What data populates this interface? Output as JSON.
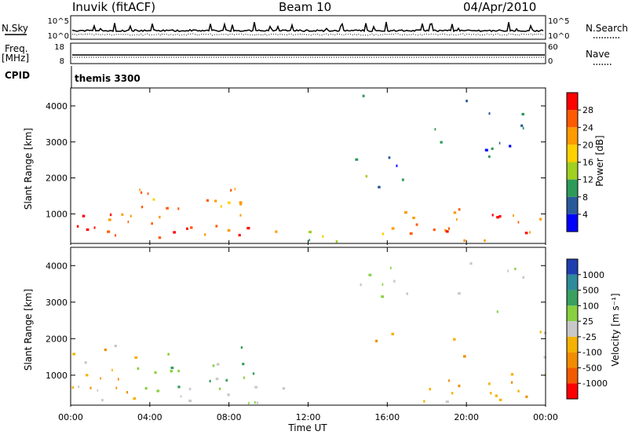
{
  "header": {
    "station": "Inuvik (fitACF)",
    "beam": "Beam 10",
    "date": "04/Apr/2010"
  },
  "params": {
    "nsky_label": "N.Sky",
    "nsearch_label": "N.Search",
    "freq_label_1": "Freq.",
    "freq_label_2": "[MHz]",
    "nave_label": "Nave",
    "cpid_label": "CPID",
    "cpid_value": "themis 3300",
    "nsky_ticks": [
      "10^5",
      "10^0"
    ],
    "nsearch_ticks": [
      "10^5",
      "10^0"
    ],
    "freq_ticks": [
      "18",
      "8"
    ],
    "nave_ticks": [
      "60",
      "0"
    ],
    "freq_mhz": 10.3
  },
  "time_axis": {
    "label": "Time UT",
    "ticks": [
      "00:00",
      "04:00",
      "08:00",
      "12:00",
      "16:00",
      "20:00",
      "00:00"
    ]
  },
  "power_scale": {
    "title": "Power [dB]",
    "ticks": [
      "28",
      "24",
      "20",
      "16",
      "12",
      "8",
      "4"
    ],
    "colors": [
      "#ff0000",
      "#ff5a00",
      "#ff9a00",
      "#ffd000",
      "#a0d020",
      "#2e9a5a",
      "#2a5a9a",
      "#0000ff"
    ]
  },
  "velocity_scale": {
    "title": "Velocity [m s⁻¹]",
    "ticks": [
      "1000",
      "500",
      "100",
      "25",
      "-25",
      "-100",
      "-500",
      "-1000"
    ],
    "colors": [
      "#1f3fb0",
      "#2f8a9a",
      "#3aa060",
      "#88d040",
      "#c8c8c8",
      "#f6b200",
      "#f28c00",
      "#f25a00",
      "#ff0000"
    ]
  },
  "chart_data": [
    {
      "type": "heatmap",
      "title": "",
      "xlabel": "",
      "ylabel": "Slant Range [km]",
      "yticks": [
        "1000",
        "2000",
        "3000",
        "4000"
      ],
      "xlim": [
        "00:00",
        "24:00"
      ],
      "ylim": [
        180,
        4500
      ],
      "colorbar": "Power [dB]",
      "clim": [
        0,
        32
      ],
      "regions": [
        {
          "t0": 0.0,
          "t1": 2.8,
          "r0": 200,
          "r1": 1100,
          "value": 26
        },
        {
          "t0": 2.0,
          "t1": 5.5,
          "r0": 600,
          "r1": 1700,
          "value": 24
        },
        {
          "t0": 3.8,
          "t1": 11.0,
          "r0": 200,
          "r1": 650,
          "value": 28
        },
        {
          "t0": 6.5,
          "t1": 9.5,
          "r0": 800,
          "r1": 1800,
          "value": 22
        },
        {
          "t0": 11.5,
          "t1": 17.0,
          "r0": 200,
          "r1": 500,
          "value": 14
        },
        {
          "t0": 16.0,
          "t1": 21.0,
          "r0": 200,
          "r1": 1100,
          "value": 24
        },
        {
          "t0": 20.5,
          "t1": 24.0,
          "r0": 300,
          "r1": 1000,
          "value": 26
        },
        {
          "t0": 13.8,
          "t1": 23.0,
          "r0": 1600,
          "r1": 4300,
          "value": 8
        }
      ]
    },
    {
      "type": "heatmap",
      "title": "",
      "xlabel": "Time UT",
      "ylabel": "Slant Range [km]",
      "yticks": [
        "1000",
        "2000",
        "3000",
        "4000"
      ],
      "xlim": [
        "00:00",
        "24:00"
      ],
      "ylim": [
        180,
        4500
      ],
      "colorbar": "Velocity [m s⁻¹]",
      "clim": [
        -1000,
        1000
      ],
      "regions": [
        {
          "t0": 0.0,
          "t1": 3.5,
          "r0": 200,
          "r1": 1800,
          "value": -200
        },
        {
          "t0": 3.0,
          "t1": 5.5,
          "r0": 500,
          "r1": 1700,
          "value": 300
        },
        {
          "t0": 6.5,
          "t1": 9.5,
          "r0": 800,
          "r1": 1800,
          "value": 250
        },
        {
          "t0": 5.5,
          "t1": 12.0,
          "r0": 200,
          "r1": 700,
          "value": 80
        },
        {
          "t0": 14.5,
          "t1": 20.5,
          "r0": 200,
          "r1": 2300,
          "value": -250
        },
        {
          "t0": 20.5,
          "t1": 24.0,
          "r0": 200,
          "r1": 1000,
          "value": -300
        },
        {
          "t0": 21.5,
          "t1": 24.0,
          "r0": 1300,
          "r1": 2600,
          "value": -150
        },
        {
          "t0": 13.8,
          "t1": 23.0,
          "r0": 2500,
          "r1": 4300,
          "value": 50
        }
      ]
    }
  ]
}
